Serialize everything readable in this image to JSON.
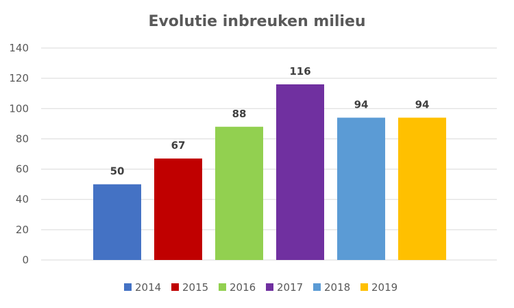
{
  "chart_data": {
    "type": "bar",
    "title": "Evolutie inbreuken milieu",
    "xlabel": "",
    "ylabel": "",
    "ylim": [
      0,
      140
    ],
    "yticks": [
      0,
      20,
      40,
      60,
      80,
      100,
      120,
      140
    ],
    "grid": true,
    "legend_position": "bottom",
    "categories": [
      "2014",
      "2015",
      "2016",
      "2017",
      "2018",
      "2019"
    ],
    "values": [
      50,
      67,
      88,
      116,
      94,
      94
    ],
    "colors": [
      "#4472c4",
      "#c00000",
      "#92d050",
      "#7030a0",
      "#5b9bd5",
      "#ffc000"
    ],
    "data_labels": [
      "50",
      "67",
      "88",
      "116",
      "94",
      "94"
    ]
  }
}
